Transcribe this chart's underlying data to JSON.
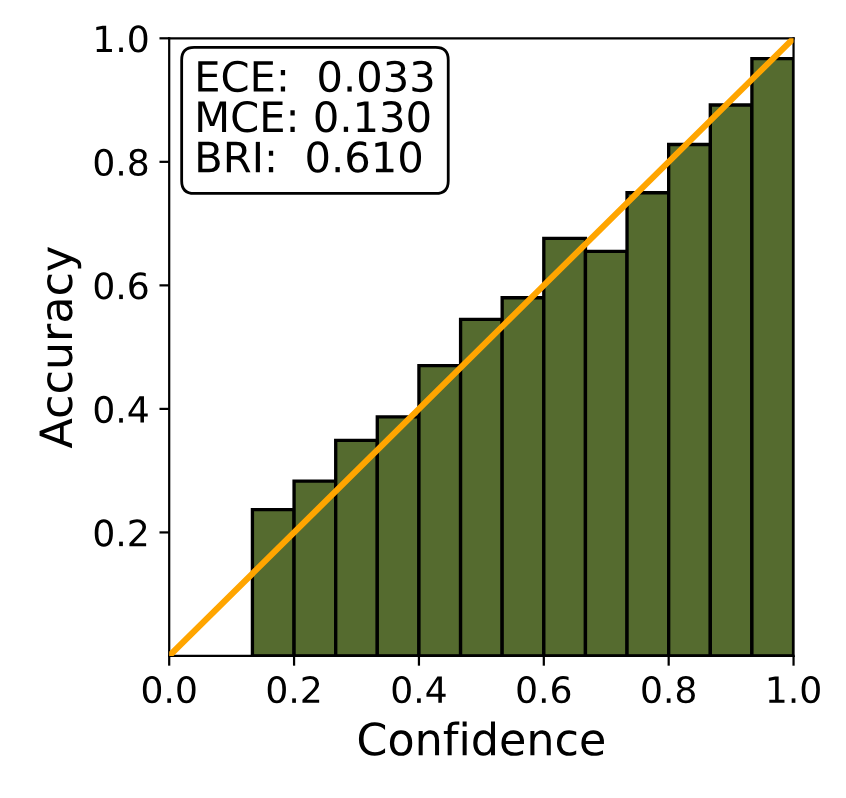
{
  "chart_data": {
    "type": "histogram",
    "xlabel": "Confidence",
    "ylabel": "Accuracy",
    "bins": [
      0.1333,
      0.2,
      0.2667,
      0.3333,
      0.4,
      0.4667,
      0.5333,
      0.6,
      0.6667,
      0.7333,
      0.8,
      0.8667,
      0.9333,
      1.0
    ],
    "values": [
      0.237,
      0.283,
      0.349,
      0.387,
      0.47,
      0.545,
      0.58,
      0.676,
      0.655,
      0.75,
      0.828,
      0.892,
      0.967
    ],
    "color": "#556b2f",
    "series": [
      {
        "type": "line",
        "x": [
          0,
          1
        ],
        "values": [
          0,
          1
        ],
        "color": "#ffa500"
      }
    ],
    "annotations": [
      "ECE:  0.033",
      "MCE: 0.130",
      "BRI:  0.610"
    ],
    "xlim": [
      0,
      1
    ],
    "ylim": [
      0,
      1
    ],
    "xticks": [
      {
        "value": 0,
        "label": "0.0"
      },
      0.2,
      0.4,
      0.6,
      0.8,
      {
        "value": 1,
        "label": "1.0"
      }
    ],
    "yticks": [
      0.2,
      0.4,
      0.6,
      0.8,
      {
        "value": 1,
        "label": "1.0"
      }
    ],
    "grid": false
  }
}
